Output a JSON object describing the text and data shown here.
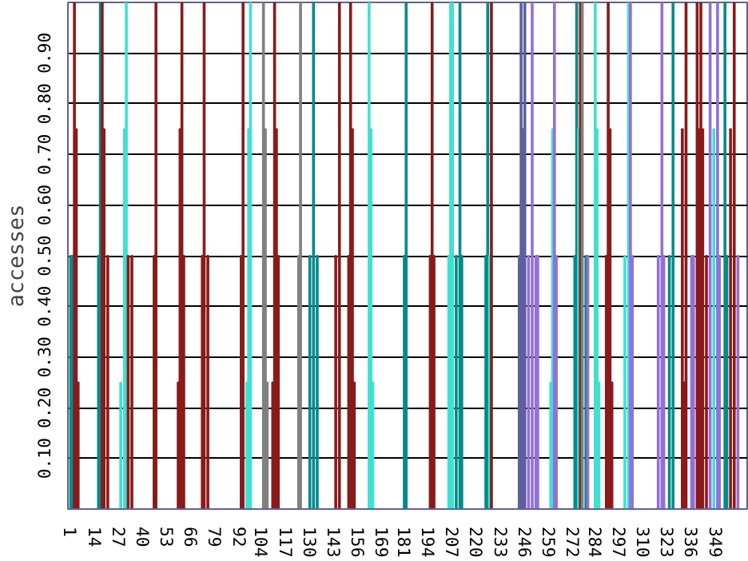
{
  "chart_data": {
    "type": "bar",
    "ylabel": "accesses",
    "x": [
      1,
      2,
      3,
      4,
      5,
      16,
      17,
      18,
      19,
      21,
      28,
      30,
      31,
      32,
      34,
      46,
      47,
      59,
      60,
      61,
      62,
      72,
      73,
      75,
      93,
      94,
      96,
      97,
      98,
      105,
      106,
      107,
      110,
      111,
      112,
      113,
      124,
      125,
      130,
      132,
      134,
      144,
      146,
      151,
      152,
      153,
      154,
      162,
      163,
      164,
      181,
      182,
      195,
      196,
      197,
      205,
      206,
      207,
      209,
      211,
      212,
      225,
      226,
      227,
      228,
      243,
      244,
      245,
      246,
      248,
      250,
      252,
      253,
      260,
      261,
      262,
      263,
      273,
      274,
      275,
      276,
      277,
      279,
      280,
      284,
      285,
      286,
      290,
      291,
      292,
      293,
      300,
      302,
      303,
      304,
      318,
      320,
      321,
      324,
      326,
      331,
      332,
      333,
      336,
      337,
      339,
      340,
      341,
      342,
      344,
      346,
      348,
      350,
      351,
      354,
      355,
      357,
      359,
      361
    ],
    "values": [
      0.5,
      0.5,
      1.0,
      0.75,
      0.25,
      0.5,
      1.0,
      1.0,
      0.75,
      0.5,
      0.25,
      0.75,
      1.0,
      0.5,
      0.5,
      0.5,
      1.0,
      0.25,
      0.75,
      1.0,
      0.5,
      0.5,
      1.0,
      0.5,
      0.5,
      1.0,
      0.25,
      0.75,
      1.0,
      1.0,
      0.75,
      0.25,
      0.25,
      1.0,
      0.75,
      0.5,
      0.5,
      1.0,
      0.5,
      1.0,
      0.5,
      0.5,
      1.0,
      0.5,
      1.0,
      0.75,
      0.25,
      1.0,
      0.75,
      0.25,
      0.5,
      1.0,
      0.5,
      1.0,
      0.5,
      0.5,
      1.0,
      1.0,
      0.5,
      1.0,
      0.5,
      0.5,
      1.0,
      0.5,
      1.0,
      0.5,
      1.0,
      0.75,
      1.0,
      0.5,
      1.0,
      0.5,
      0.5,
      0.25,
      0.75,
      1.0,
      0.5,
      0.5,
      1.0,
      0.75,
      1.0,
      1.0,
      0.5,
      0.5,
      1.0,
      0.75,
      0.25,
      0.5,
      1.0,
      0.75,
      0.25,
      0.5,
      1.0,
      1.0,
      0.5,
      0.5,
      1.0,
      0.5,
      0.5,
      1.0,
      0.75,
      0.25,
      1.0,
      0.5,
      0.5,
      1.0,
      0.75,
      1.0,
      0.75,
      0.5,
      1.0,
      0.75,
      1.0,
      0.5,
      1.0,
      0.5,
      0.75,
      1.0,
      0.5
    ],
    "colors": [
      "#008b8b",
      "#008b8b",
      "#8b1a1a",
      "#8b1a1a",
      "#8b1a1a",
      "#008b8b",
      "#008b8b",
      "#8b1a1a",
      "#8b1a1a",
      "#8b1a1a",
      "#40e0d0",
      "#40e0d0",
      "#40e0d0",
      "#8b1a1a",
      "#8b1a1a",
      "#8b1a1a",
      "#8b1a1a",
      "#8b1a1a",
      "#8b1a1a",
      "#8b1a1a",
      "#8b1a1a",
      "#8b1a1a",
      "#8b1a1a",
      "#8b1a1a",
      "#8b1a1a",
      "#8b1a1a",
      "#40e0d0",
      "#40e0d0",
      "#40e0d0",
      "#808080",
      "#808080",
      "#808080",
      "#8b1a1a",
      "#8b1a1a",
      "#8b1a1a",
      "#8b1a1a",
      "#808080",
      "#808080",
      "#008b8b",
      "#008b8b",
      "#008b8b",
      "#8b1a1a",
      "#8b1a1a",
      "#8b1a1a",
      "#8b1a1a",
      "#8b1a1a",
      "#8b1a1a",
      "#40e0d0",
      "#40e0d0",
      "#40e0d0",
      "#008b8b",
      "#008b8b",
      "#8b1a1a",
      "#8b1a1a",
      "#8b1a1a",
      "#40e0d0",
      "#40e0d0",
      "#40e0d0",
      "#008b8b",
      "#008b8b",
      "#008b8b",
      "#008b8b",
      "#008b8b",
      "#40e0d0",
      "#8b1a1a",
      "#5f5f9f",
      "#5f5f9f",
      "#5f5f9f",
      "#5f5f9f",
      "#9370db",
      "#9370db",
      "#9370db",
      "#9370db",
      "#40e0d0",
      "#40e0d0",
      "#9370db",
      "#9370db",
      "#008b8b",
      "#008b8b",
      "#40e0d0",
      "#8b1a1a",
      "#808080",
      "#008b8b",
      "#9370db",
      "#40e0d0",
      "#40e0d0",
      "#40e0d0",
      "#8b1a1a",
      "#8b1a1a",
      "#8b1a1a",
      "#8b1a1a",
      "#40e0d0",
      "#40e0d0",
      "#9370db",
      "#9370db",
      "#9370db",
      "#9370db",
      "#9370db",
      "#008b8b",
      "#008b8b",
      "#8b1a1a",
      "#8b1a1a",
      "#8b1a1a",
      "#9370db",
      "#9370db",
      "#8b1a1a",
      "#8b1a1a",
      "#8b1a1a",
      "#8b1a1a",
      "#8b1a1a",
      "#9370db",
      "#40e0d0",
      "#9370db",
      "#9370db",
      "#008b8b",
      "#008b8b",
      "#8b1a1a",
      "#8b1a1a",
      "#9370db"
    ],
    "xlim": [
      -0.5,
      366
    ],
    "xticks": [
      1,
      14,
      27,
      40,
      53,
      66,
      79,
      92,
      104,
      117,
      130,
      143,
      156,
      169,
      181,
      194,
      207,
      220,
      233,
      246,
      259,
      272,
      284,
      297,
      310,
      323,
      336,
      349
    ],
    "ylim": [
      0,
      1.0
    ],
    "yticks": [
      {
        "value": 0.1,
        "label": "0.10"
      },
      {
        "value": 0.2,
        "label": "0.20"
      },
      {
        "value": 0.3,
        "label": "0.30"
      },
      {
        "value": 0.4,
        "label": "0.40"
      },
      {
        "value": 0.5,
        "label": "0.50"
      },
      {
        "value": 0.6,
        "label": "0.60"
      },
      {
        "value": 0.7,
        "label": "0.70"
      },
      {
        "value": 0.8,
        "label": "0.80"
      },
      {
        "value": 0.9,
        "label": "0.90"
      }
    ],
    "grid": "y"
  }
}
